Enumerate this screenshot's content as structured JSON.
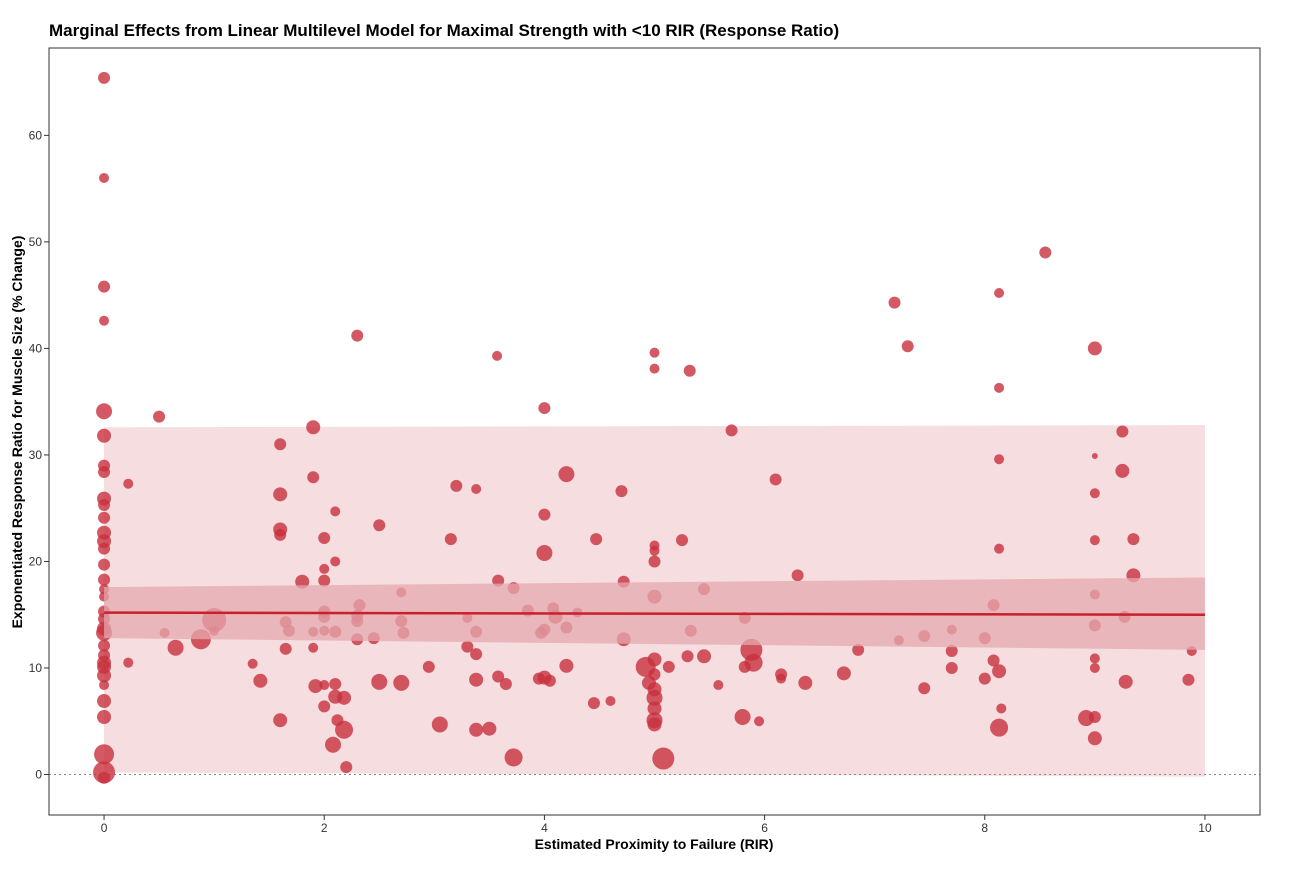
{
  "chart_data": {
    "type": "scatter",
    "title": "Marginal Effects from Linear Multilevel Model for Maximal Strength with <10 RIR (Response Ratio)",
    "xlabel": "Estimated Proximity to Failure (RIR)",
    "ylabel": "Exponentiated Response Ratio for Muscle Size (% Change)",
    "xlim": [
      -0.5,
      10.5
    ],
    "ylim": [
      -3.8,
      68.2
    ],
    "x_ticks": [
      0,
      2,
      4,
      6,
      8,
      10
    ],
    "y_ticks": [
      0,
      10,
      20,
      30,
      40,
      50,
      60
    ],
    "grid": false,
    "reference_line_y": 0,
    "colors": {
      "points": "#c8313d",
      "fit_line": "#c8202c",
      "outer_band": "#f5dde0",
      "inner_band": "#e4a9af",
      "reference_line": "#888888"
    },
    "fit": {
      "x": [
        0,
        10
      ],
      "y": [
        15.2,
        15.0
      ],
      "inner_band": {
        "lower": [
          12.8,
          11.7
        ],
        "upper": [
          17.6,
          18.5
        ]
      },
      "outer_band": {
        "lower": [
          0.2,
          -0.2
        ],
        "upper": [
          32.6,
          32.8
        ]
      }
    },
    "points": [
      {
        "x": 0,
        "y": 65.4,
        "s": 6
      },
      {
        "x": 0,
        "y": 56.0,
        "s": 5
      },
      {
        "x": 0,
        "y": 45.8,
        "s": 6
      },
      {
        "x": 0,
        "y": 42.6,
        "s": 5
      },
      {
        "x": 0,
        "y": 34.1,
        "s": 8
      },
      {
        "x": 0,
        "y": 31.8,
        "s": 7
      },
      {
        "x": 0,
        "y": 29.0,
        "s": 6
      },
      {
        "x": 0,
        "y": 28.4,
        "s": 6
      },
      {
        "x": 0,
        "y": 25.9,
        "s": 7
      },
      {
        "x": 0,
        "y": 25.3,
        "s": 6
      },
      {
        "x": 0,
        "y": 24.1,
        "s": 6
      },
      {
        "x": 0,
        "y": 22.7,
        "s": 7
      },
      {
        "x": 0,
        "y": 21.9,
        "s": 7
      },
      {
        "x": 0,
        "y": 21.2,
        "s": 6
      },
      {
        "x": 0,
        "y": 19.7,
        "s": 6
      },
      {
        "x": 0,
        "y": 18.3,
        "s": 6
      },
      {
        "x": 0,
        "y": 17.4,
        "s": 5
      },
      {
        "x": 0,
        "y": 16.7,
        "s": 5
      },
      {
        "x": 0,
        "y": 15.3,
        "s": 6
      },
      {
        "x": 0,
        "y": 14.6,
        "s": 6
      },
      {
        "x": 0,
        "y": 13.7,
        "s": 7
      },
      {
        "x": 0,
        "y": 13.3,
        "s": 8
      },
      {
        "x": 0,
        "y": 12.1,
        "s": 6
      },
      {
        "x": 0,
        "y": 11.2,
        "s": 6
      },
      {
        "x": 0,
        "y": 10.5,
        "s": 7
      },
      {
        "x": 0,
        "y": 10.1,
        "s": 7
      },
      {
        "x": 0,
        "y": 9.3,
        "s": 7
      },
      {
        "x": 0,
        "y": 8.4,
        "s": 5
      },
      {
        "x": 0,
        "y": 6.9,
        "s": 7
      },
      {
        "x": 0,
        "y": 5.4,
        "s": 7
      },
      {
        "x": 0,
        "y": 1.9,
        "s": 10
      },
      {
        "x": 0,
        "y": 0.2,
        "s": 11
      },
      {
        "x": 0,
        "y": -0.3,
        "s": 6
      },
      {
        "x": 0.22,
        "y": 27.3,
        "s": 5
      },
      {
        "x": 0.22,
        "y": 10.5,
        "s": 5
      },
      {
        "x": 0.5,
        "y": 33.6,
        "s": 6
      },
      {
        "x": 0.55,
        "y": 13.3,
        "s": 5
      },
      {
        "x": 0.65,
        "y": 11.9,
        "s": 8
      },
      {
        "x": 0.88,
        "y": 12.7,
        "s": 10
      },
      {
        "x": 1.0,
        "y": 14.5,
        "s": 12
      },
      {
        "x": 1.0,
        "y": 13.5,
        "s": 5
      },
      {
        "x": 1.35,
        "y": 10.4,
        "s": 5
      },
      {
        "x": 1.42,
        "y": 8.8,
        "s": 7
      },
      {
        "x": 1.6,
        "y": 31.0,
        "s": 6
      },
      {
        "x": 1.6,
        "y": 26.3,
        "s": 7
      },
      {
        "x": 1.6,
        "y": 23.0,
        "s": 7
      },
      {
        "x": 1.6,
        "y": 22.5,
        "s": 6
      },
      {
        "x": 1.6,
        "y": 5.1,
        "s": 7
      },
      {
        "x": 1.65,
        "y": 14.3,
        "s": 6
      },
      {
        "x": 1.65,
        "y": 11.8,
        "s": 6
      },
      {
        "x": 1.68,
        "y": 13.5,
        "s": 6
      },
      {
        "x": 1.8,
        "y": 18.1,
        "s": 7
      },
      {
        "x": 1.9,
        "y": 32.6,
        "s": 7
      },
      {
        "x": 1.9,
        "y": 27.9,
        "s": 6
      },
      {
        "x": 1.9,
        "y": 13.4,
        "s": 5
      },
      {
        "x": 1.9,
        "y": 11.9,
        "s": 5
      },
      {
        "x": 1.92,
        "y": 8.3,
        "s": 7
      },
      {
        "x": 2.0,
        "y": 22.2,
        "s": 6
      },
      {
        "x": 2.0,
        "y": 19.3,
        "s": 5
      },
      {
        "x": 2.0,
        "y": 18.2,
        "s": 6
      },
      {
        "x": 2.0,
        "y": 15.3,
        "s": 6
      },
      {
        "x": 2.0,
        "y": 14.8,
        "s": 6
      },
      {
        "x": 2.0,
        "y": 13.5,
        "s": 5
      },
      {
        "x": 2.0,
        "y": 8.4,
        "s": 5
      },
      {
        "x": 2.0,
        "y": 6.4,
        "s": 6
      },
      {
        "x": 2.08,
        "y": 2.8,
        "s": 8
      },
      {
        "x": 2.1,
        "y": 24.7,
        "s": 5
      },
      {
        "x": 2.1,
        "y": 20.0,
        "s": 5
      },
      {
        "x": 2.1,
        "y": 13.4,
        "s": 6
      },
      {
        "x": 2.1,
        "y": 8.5,
        "s": 6
      },
      {
        "x": 2.1,
        "y": 7.3,
        "s": 7
      },
      {
        "x": 2.12,
        "y": 5.1,
        "s": 6
      },
      {
        "x": 2.18,
        "y": 7.2,
        "s": 7
      },
      {
        "x": 2.18,
        "y": 4.2,
        "s": 9
      },
      {
        "x": 2.2,
        "y": 0.7,
        "s": 6
      },
      {
        "x": 2.3,
        "y": 41.2,
        "s": 6
      },
      {
        "x": 2.3,
        "y": 14.9,
        "s": 6
      },
      {
        "x": 2.3,
        "y": 14.4,
        "s": 6
      },
      {
        "x": 2.3,
        "y": 12.7,
        "s": 6
      },
      {
        "x": 2.32,
        "y": 15.9,
        "s": 6
      },
      {
        "x": 2.45,
        "y": 12.8,
        "s": 6
      },
      {
        "x": 2.5,
        "y": 23.4,
        "s": 6
      },
      {
        "x": 2.5,
        "y": 8.7,
        "s": 8
      },
      {
        "x": 2.7,
        "y": 17.1,
        "s": 5
      },
      {
        "x": 2.7,
        "y": 14.4,
        "s": 6
      },
      {
        "x": 2.72,
        "y": 13.3,
        "s": 6
      },
      {
        "x": 2.7,
        "y": 8.6,
        "s": 8
      },
      {
        "x": 2.95,
        "y": 10.1,
        "s": 6
      },
      {
        "x": 3.05,
        "y": 4.7,
        "s": 8
      },
      {
        "x": 3.15,
        "y": 22.1,
        "s": 6
      },
      {
        "x": 3.2,
        "y": 27.1,
        "s": 6
      },
      {
        "x": 3.3,
        "y": 14.7,
        "s": 5
      },
      {
        "x": 3.3,
        "y": 12.0,
        "s": 6
      },
      {
        "x": 3.38,
        "y": 26.8,
        "s": 5
      },
      {
        "x": 3.38,
        "y": 13.4,
        "s": 6
      },
      {
        "x": 3.38,
        "y": 11.3,
        "s": 6
      },
      {
        "x": 3.38,
        "y": 8.9,
        "s": 7
      },
      {
        "x": 3.38,
        "y": 4.2,
        "s": 7
      },
      {
        "x": 3.5,
        "y": 4.3,
        "s": 7
      },
      {
        "x": 3.57,
        "y": 39.3,
        "s": 5
      },
      {
        "x": 3.58,
        "y": 18.2,
        "s": 6
      },
      {
        "x": 3.58,
        "y": 9.2,
        "s": 6
      },
      {
        "x": 3.65,
        "y": 8.5,
        "s": 6
      },
      {
        "x": 3.72,
        "y": 17.5,
        "s": 6
      },
      {
        "x": 3.72,
        "y": 1.6,
        "s": 9
      },
      {
        "x": 3.85,
        "y": 15.4,
        "s": 6
      },
      {
        "x": 3.95,
        "y": 9.0,
        "s": 6
      },
      {
        "x": 3.97,
        "y": 13.3,
        "s": 6
      },
      {
        "x": 4.0,
        "y": 34.4,
        "s": 6
      },
      {
        "x": 4.0,
        "y": 24.4,
        "s": 6
      },
      {
        "x": 4.0,
        "y": 20.8,
        "s": 8
      },
      {
        "x": 4.0,
        "y": 13.6,
        "s": 6
      },
      {
        "x": 4.0,
        "y": 9.1,
        "s": 7
      },
      {
        "x": 4.05,
        "y": 8.8,
        "s": 6
      },
      {
        "x": 4.08,
        "y": 15.6,
        "s": 6
      },
      {
        "x": 4.1,
        "y": 14.8,
        "s": 7
      },
      {
        "x": 4.2,
        "y": 28.2,
        "s": 8
      },
      {
        "x": 4.2,
        "y": 13.8,
        "s": 6
      },
      {
        "x": 4.2,
        "y": 10.2,
        "s": 7
      },
      {
        "x": 4.3,
        "y": 15.2,
        "s": 5
      },
      {
        "x": 4.45,
        "y": 6.7,
        "s": 6
      },
      {
        "x": 4.47,
        "y": 22.1,
        "s": 6
      },
      {
        "x": 4.6,
        "y": 6.9,
        "s": 5
      },
      {
        "x": 4.7,
        "y": 26.6,
        "s": 6
      },
      {
        "x": 4.72,
        "y": 18.1,
        "s": 6
      },
      {
        "x": 4.72,
        "y": 12.7,
        "s": 7
      },
      {
        "x": 4.92,
        "y": 10.1,
        "s": 10
      },
      {
        "x": 4.95,
        "y": 8.6,
        "s": 7
      },
      {
        "x": 5.0,
        "y": 39.6,
        "s": 5
      },
      {
        "x": 5.0,
        "y": 38.1,
        "s": 5
      },
      {
        "x": 5.0,
        "y": 21.5,
        "s": 5
      },
      {
        "x": 5.0,
        "y": 21.0,
        "s": 5
      },
      {
        "x": 5.0,
        "y": 20.0,
        "s": 6
      },
      {
        "x": 5.0,
        "y": 16.7,
        "s": 7
      },
      {
        "x": 5.0,
        "y": 10.8,
        "s": 7
      },
      {
        "x": 5.0,
        "y": 9.4,
        "s": 6
      },
      {
        "x": 5.0,
        "y": 8.0,
        "s": 7
      },
      {
        "x": 5.0,
        "y": 7.2,
        "s": 8
      },
      {
        "x": 5.0,
        "y": 6.2,
        "s": 7
      },
      {
        "x": 5.0,
        "y": 5.1,
        "s": 8
      },
      {
        "x": 5.0,
        "y": 4.7,
        "s": 7
      },
      {
        "x": 5.08,
        "y": 1.5,
        "s": 11
      },
      {
        "x": 5.13,
        "y": 10.1,
        "s": 6
      },
      {
        "x": 5.25,
        "y": 22.0,
        "s": 6
      },
      {
        "x": 5.3,
        "y": 11.1,
        "s": 6
      },
      {
        "x": 5.32,
        "y": 37.9,
        "s": 6
      },
      {
        "x": 5.33,
        "y": 13.5,
        "s": 6
      },
      {
        "x": 5.45,
        "y": 17.4,
        "s": 6
      },
      {
        "x": 5.45,
        "y": 11.1,
        "s": 7
      },
      {
        "x": 5.58,
        "y": 8.4,
        "s": 5
      },
      {
        "x": 5.7,
        "y": 32.3,
        "s": 6
      },
      {
        "x": 5.8,
        "y": 5.4,
        "s": 8
      },
      {
        "x": 5.82,
        "y": 14.7,
        "s": 6
      },
      {
        "x": 5.82,
        "y": 10.1,
        "s": 6
      },
      {
        "x": 5.88,
        "y": 11.7,
        "s": 11
      },
      {
        "x": 5.9,
        "y": 10.5,
        "s": 9
      },
      {
        "x": 5.95,
        "y": 5.0,
        "s": 5
      },
      {
        "x": 6.1,
        "y": 27.7,
        "s": 6
      },
      {
        "x": 6.15,
        "y": 9.4,
        "s": 6
      },
      {
        "x": 6.15,
        "y": 9.0,
        "s": 5
      },
      {
        "x": 6.3,
        "y": 18.7,
        "s": 6
      },
      {
        "x": 6.37,
        "y": 8.6,
        "s": 7
      },
      {
        "x": 6.72,
        "y": 9.5,
        "s": 7
      },
      {
        "x": 6.85,
        "y": 11.7,
        "s": 6
      },
      {
        "x": 7.18,
        "y": 44.3,
        "s": 6
      },
      {
        "x": 7.22,
        "y": 12.6,
        "s": 5
      },
      {
        "x": 7.3,
        "y": 40.2,
        "s": 6
      },
      {
        "x": 7.45,
        "y": 13.0,
        "s": 6
      },
      {
        "x": 7.45,
        "y": 8.1,
        "s": 6
      },
      {
        "x": 7.7,
        "y": 13.6,
        "s": 5
      },
      {
        "x": 7.7,
        "y": 11.6,
        "s": 6
      },
      {
        "x": 7.7,
        "y": 10.0,
        "s": 6
      },
      {
        "x": 8.0,
        "y": 12.8,
        "s": 6
      },
      {
        "x": 8.0,
        "y": 9.0,
        "s": 6
      },
      {
        "x": 8.08,
        "y": 15.9,
        "s": 6
      },
      {
        "x": 8.08,
        "y": 10.7,
        "s": 6
      },
      {
        "x": 8.13,
        "y": 45.2,
        "s": 5
      },
      {
        "x": 8.13,
        "y": 36.3,
        "s": 5
      },
      {
        "x": 8.13,
        "y": 29.6,
        "s": 5
      },
      {
        "x": 8.13,
        "y": 21.2,
        "s": 5
      },
      {
        "x": 8.13,
        "y": 9.7,
        "s": 7
      },
      {
        "x": 8.15,
        "y": 6.2,
        "s": 5
      },
      {
        "x": 8.13,
        "y": 4.4,
        "s": 9
      },
      {
        "x": 8.55,
        "y": 49.0,
        "s": 6
      },
      {
        "x": 8.92,
        "y": 5.3,
        "s": 8
      },
      {
        "x": 9.0,
        "y": 40.0,
        "s": 7
      },
      {
        "x": 9.0,
        "y": 29.9,
        "s": 3
      },
      {
        "x": 9.0,
        "y": 26.4,
        "s": 5
      },
      {
        "x": 9.0,
        "y": 22.0,
        "s": 5
      },
      {
        "x": 9.0,
        "y": 16.9,
        "s": 5
      },
      {
        "x": 9.0,
        "y": 14.0,
        "s": 6
      },
      {
        "x": 9.0,
        "y": 10.9,
        "s": 5
      },
      {
        "x": 9.0,
        "y": 10.0,
        "s": 5
      },
      {
        "x": 9.0,
        "y": 5.4,
        "s": 6
      },
      {
        "x": 9.0,
        "y": 3.4,
        "s": 7
      },
      {
        "x": 9.25,
        "y": 32.2,
        "s": 6
      },
      {
        "x": 9.25,
        "y": 28.5,
        "s": 7
      },
      {
        "x": 9.27,
        "y": 14.8,
        "s": 6
      },
      {
        "x": 9.28,
        "y": 8.7,
        "s": 7
      },
      {
        "x": 9.35,
        "y": 22.1,
        "s": 6
      },
      {
        "x": 9.35,
        "y": 18.7,
        "s": 7
      },
      {
        "x": 9.85,
        "y": 8.9,
        "s": 6
      },
      {
        "x": 9.88,
        "y": 11.6,
        "s": 5
      }
    ]
  }
}
